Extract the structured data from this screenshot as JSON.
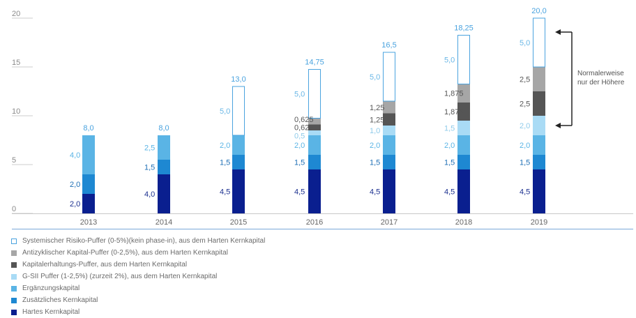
{
  "chart_data": {
    "type": "bar",
    "stacked": true,
    "title": "",
    "xlabel": "",
    "ylabel": "",
    "ylim": [
      0,
      20
    ],
    "yticks": [
      0,
      5,
      10,
      15,
      20
    ],
    "ytick_labels": [
      "0",
      "5",
      "10",
      "15",
      "20"
    ],
    "categories": [
      "2013",
      "2014",
      "2015",
      "2016",
      "2017",
      "2018",
      "2019"
    ],
    "totals": [
      "8,0",
      "8,0",
      "13,0",
      "14,75",
      "16,5",
      "18,25",
      "20,0"
    ],
    "series": [
      {
        "key": "hartes",
        "name": "Hartes Kernkapital",
        "color": "#0a1f8f",
        "values": [
          2.0,
          4.0,
          4.5,
          4.5,
          4.5,
          4.5,
          4.5
        ],
        "labels": [
          "2,0",
          "4,0",
          "4,5",
          "4,5",
          "4,5",
          "4,5",
          "4,5"
        ]
      },
      {
        "key": "zusaetzliches",
        "name": "Zusätzliches Kernkapital",
        "color": "#1e88d2",
        "values": [
          2.0,
          1.5,
          1.5,
          1.5,
          1.5,
          1.5,
          1.5
        ],
        "labels": [
          "2,0",
          "1,5",
          "1,5",
          "1,5",
          "1,5",
          "1,5",
          "1,5"
        ]
      },
      {
        "key": "ergaenzung",
        "name": "Ergänzungskapital",
        "color": "#5ab4e5",
        "values": [
          4.0,
          2.5,
          2.0,
          2.0,
          2.0,
          2.0,
          2.0
        ],
        "labels": [
          "4,0",
          "2,5",
          "2,0",
          "2,0",
          "2,0",
          "2,0",
          "2,0"
        ]
      },
      {
        "key": "gsii",
        "name": "G-SII Puffer (1-2,5%) (zurzeit 2%), aus dem Harten Kernkapital",
        "color": "#a9dbf5",
        "values": [
          0,
          0,
          0,
          0.5,
          1.0,
          1.5,
          2.0
        ],
        "labels": [
          "",
          "",
          "",
          "0,5",
          "1,0",
          "1,5",
          "2,0"
        ]
      },
      {
        "key": "kapitalerhaltung",
        "name": "Kapitalerhaltungs-Puffer, aus dem Harten Kernkapital",
        "color": "#555555",
        "values": [
          0,
          0,
          0,
          0.625,
          1.25,
          1.875,
          2.5
        ],
        "labels": [
          "",
          "",
          "",
          "0,625",
          "1,25",
          "1,875",
          "2,5"
        ]
      },
      {
        "key": "antizyklisch",
        "name": "Antizyklischer Kapital-Puffer (0-2,5%), aus dem Harten Kernkapital",
        "color": "#a6a6a6",
        "values": [
          0,
          0,
          0,
          0.625,
          1.25,
          1.875,
          2.5
        ],
        "labels": [
          "",
          "",
          "",
          "0,625",
          "1,25",
          "1,875",
          "2,5"
        ]
      },
      {
        "key": "systemisch",
        "name": "Systemischer Risiko-Puffer (0-5%)(kein phase-in), aus dem Harten Kernkapital",
        "color": "#4aa3df",
        "outline": true,
        "values": [
          0,
          0,
          5.0,
          5.0,
          5.0,
          5.0,
          5.0
        ],
        "labels": [
          "",
          "",
          "5,0",
          "5,0",
          "5,0",
          "5,0",
          "5,0"
        ]
      }
    ],
    "legend_placement": "bottom",
    "annotation": {
      "lines": [
        "Normalerweise",
        "nur der Höhere"
      ]
    }
  }
}
